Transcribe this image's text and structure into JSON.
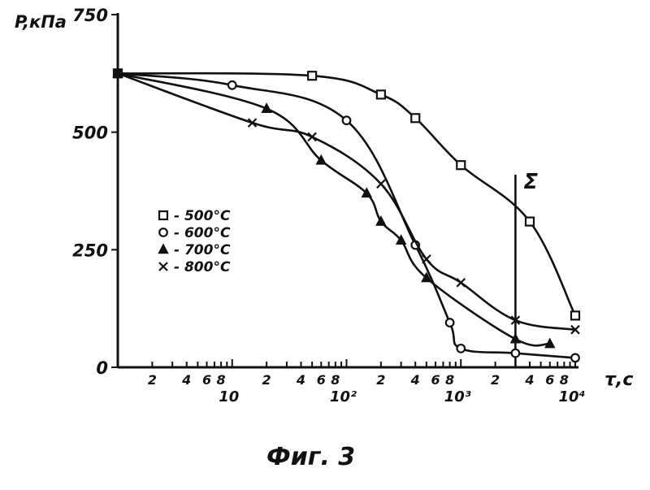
{
  "chart_data": {
    "type": "line",
    "xscale": "log",
    "xlim": [
      1,
      10000
    ],
    "ylim": [
      0,
      750
    ],
    "ylabel": "P,кПа",
    "xlabel": "τ,c",
    "caption": "Фиг. 3",
    "y_ticks": [
      "0",
      "250",
      "500",
      "750"
    ],
    "x_tick_labels": [
      {
        "v": 2,
        "t": "2"
      },
      {
        "v": 4,
        "t": "4"
      },
      {
        "v": 6,
        "t": "6"
      },
      {
        "v": 8,
        "t": "8"
      },
      {
        "v": 20,
        "t": "2"
      },
      {
        "v": 40,
        "t": "4"
      },
      {
        "v": 60,
        "t": "6"
      },
      {
        "v": 80,
        "t": "8"
      },
      {
        "v": 200,
        "t": "2"
      },
      {
        "v": 400,
        "t": "4"
      },
      {
        "v": 600,
        "t": "6"
      },
      {
        "v": 800,
        "t": "8"
      },
      {
        "v": 2000,
        "t": "2"
      },
      {
        "v": 4000,
        "t": "4"
      },
      {
        "v": 6000,
        "t": "6"
      },
      {
        "v": 8000,
        "t": "8"
      }
    ],
    "x_decade_labels": [
      {
        "v": 10,
        "t": "10"
      },
      {
        "v": 100,
        "t": "10²"
      },
      {
        "v": 1000,
        "t": "10³"
      },
      {
        "v": 10000,
        "t": "10⁴"
      }
    ],
    "vertical_marker": {
      "x": 3000,
      "label": "Σ"
    },
    "series": [
      {
        "name": "500°C",
        "legend": "- 500°C",
        "marker": "square",
        "x": [
          1,
          50,
          200,
          400,
          1000,
          4000,
          10000
        ],
        "y": [
          625,
          620,
          580,
          530,
          430,
          310,
          110
        ]
      },
      {
        "name": "600°C",
        "legend": "- 600°C",
        "marker": "circle",
        "x": [
          1,
          10,
          100,
          400,
          800,
          1000,
          3000,
          10000
        ],
        "y": [
          625,
          600,
          525,
          260,
          95,
          40,
          30,
          20
        ]
      },
      {
        "name": "700°C",
        "legend": "- 700°C",
        "marker": "triangle",
        "x": [
          1,
          20,
          60,
          150,
          200,
          300,
          500,
          3000,
          6000
        ],
        "y": [
          625,
          550,
          440,
          370,
          310,
          270,
          190,
          60,
          50
        ]
      },
      {
        "name": "800°C",
        "legend": "- 800°C",
        "marker": "cross",
        "x": [
          1,
          15,
          50,
          200,
          500,
          1000,
          3000,
          10000
        ],
        "y": [
          625,
          520,
          490,
          390,
          230,
          180,
          100,
          80
        ]
      }
    ]
  }
}
